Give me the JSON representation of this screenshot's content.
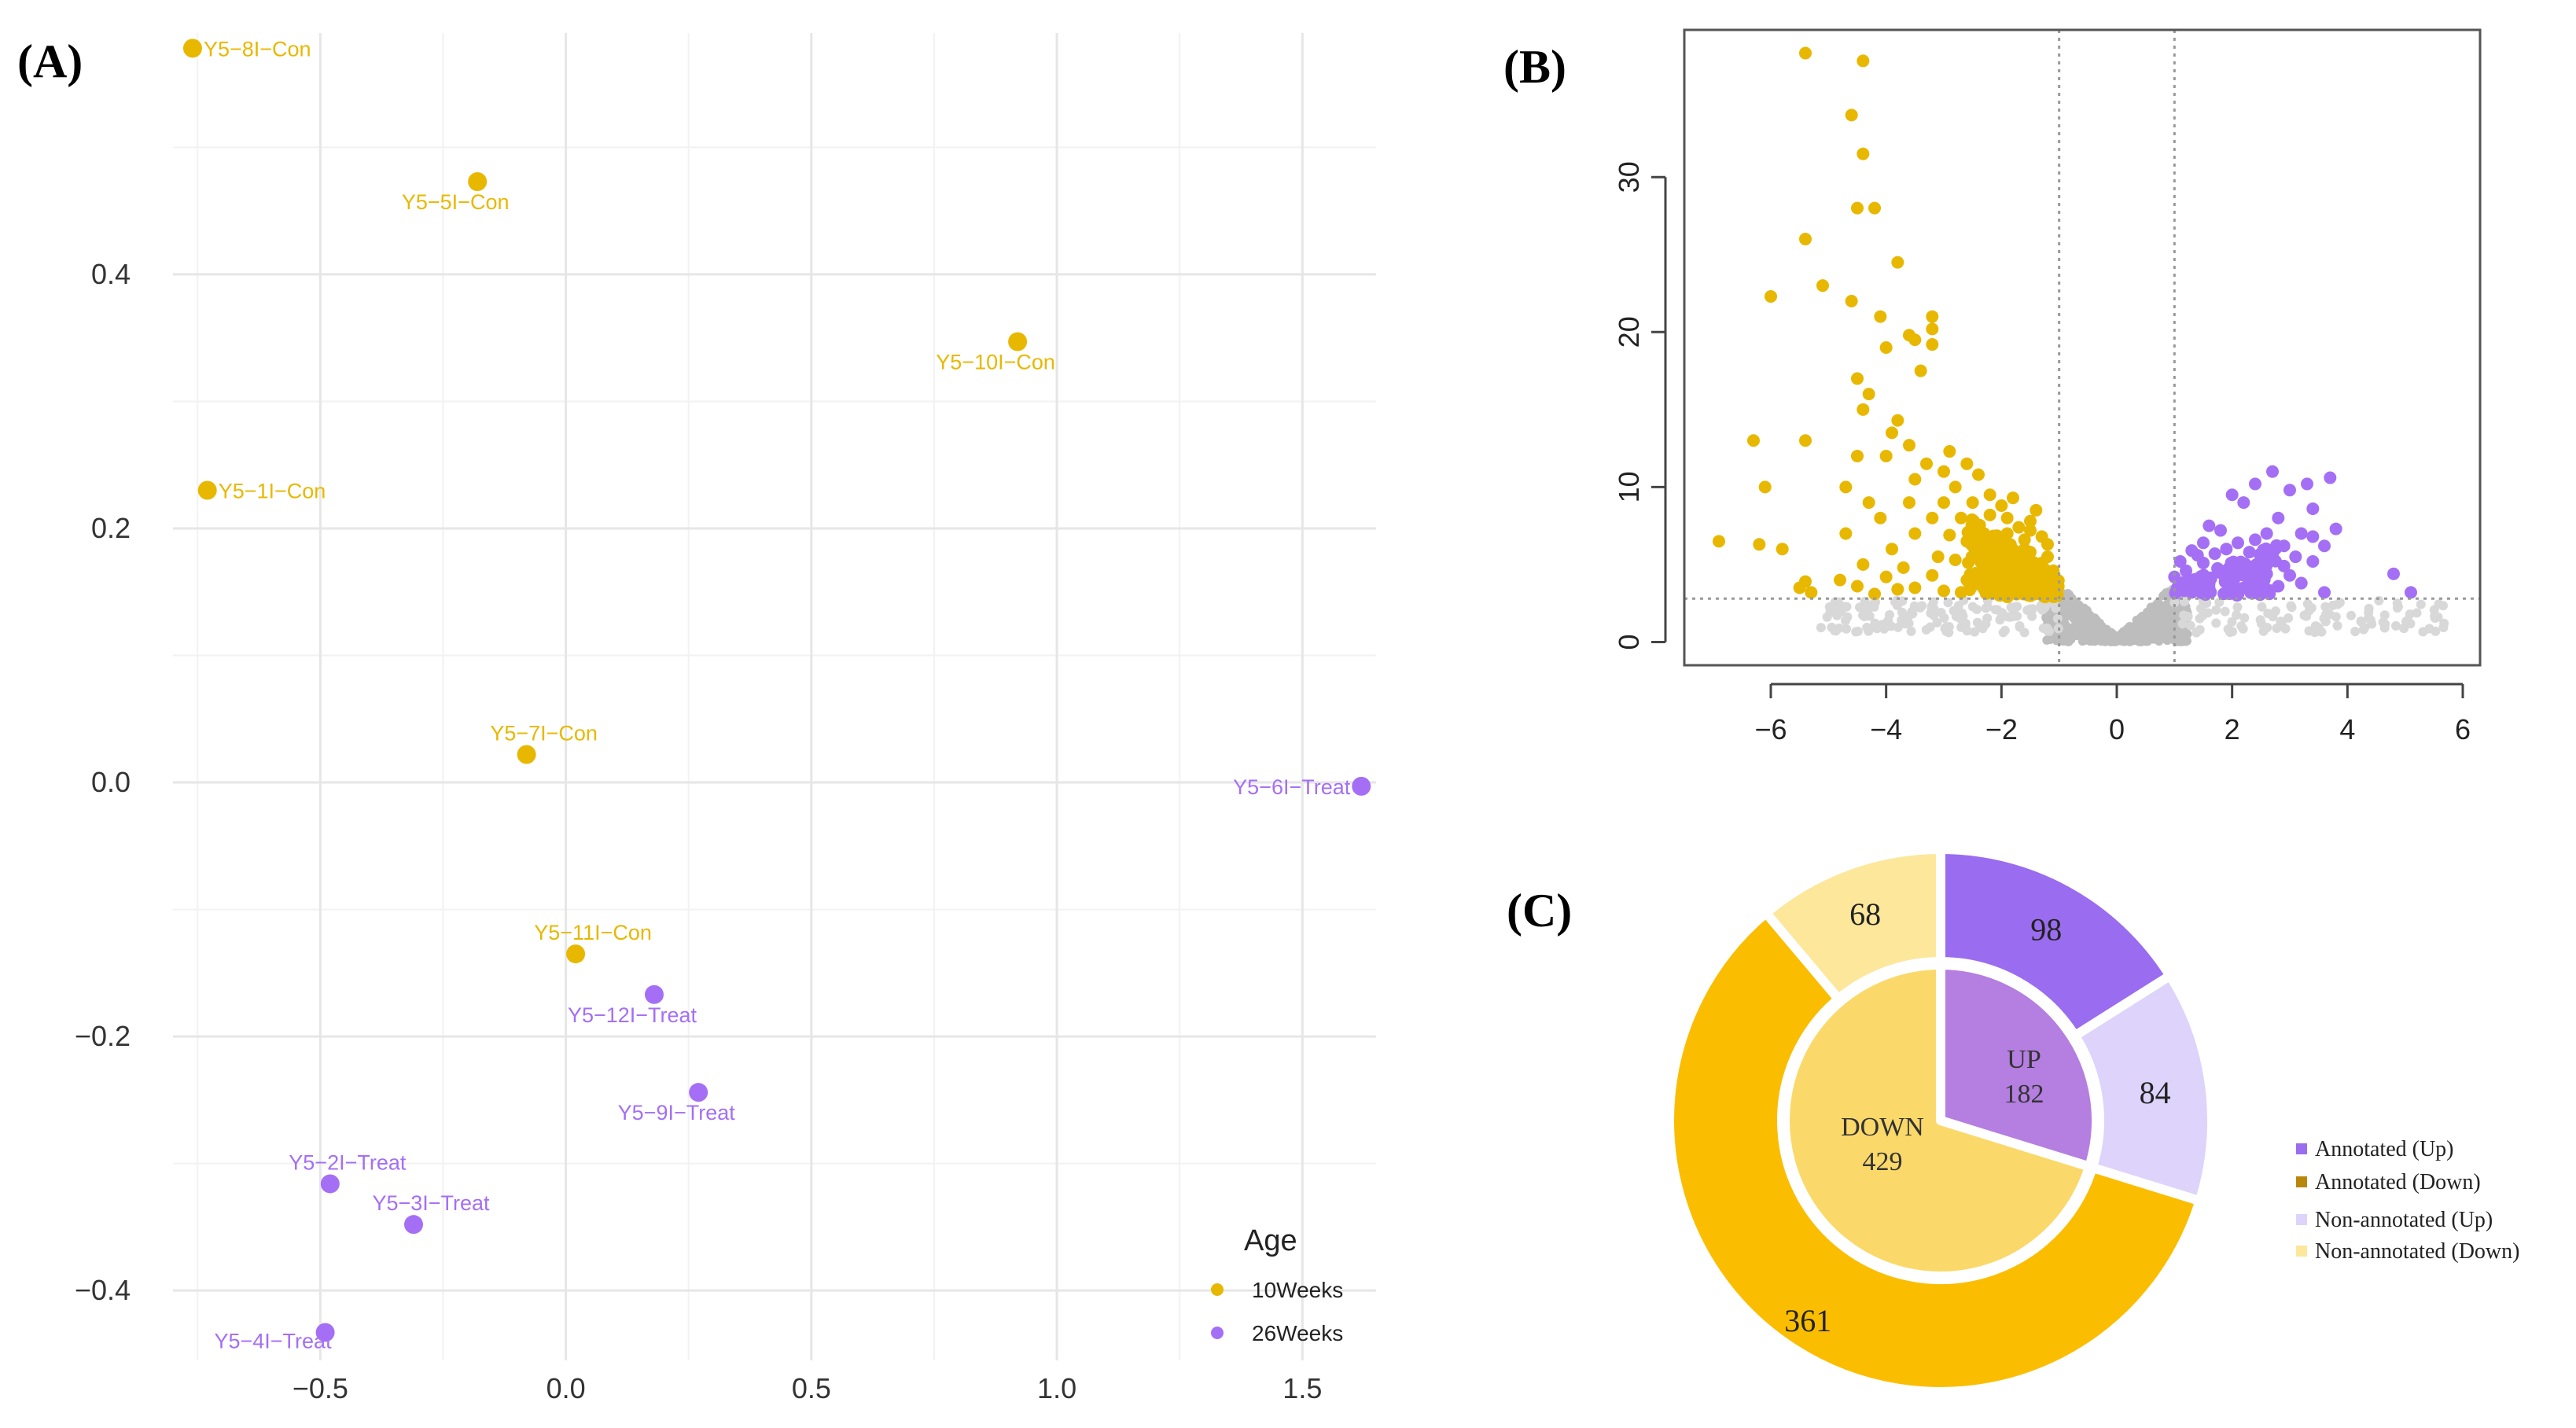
{
  "colors": {
    "gold": "#e8b800",
    "purple": "#a46ff5",
    "grey": "#bdbdbd",
    "grey_light": "#d8d8d8",
    "up_dark": "#9a6cef",
    "up_inner": "#b47fe0",
    "up_light": "#ddd3fb",
    "down_dark": "#fbbd00",
    "down_inner": "#fad96a",
    "down_light": "#fce79b"
  },
  "panels": {
    "a": "(A)",
    "b": "(B)",
    "c": "(C)"
  },
  "chart_data": [
    {
      "type": "scatter",
      "title": "",
      "xlabel": "",
      "ylabel": "",
      "xlim": [
        -0.8,
        1.65
      ],
      "ylim": [
        -0.455,
        0.59
      ],
      "xticks": [
        -0.5,
        0.0,
        0.5,
        1.0,
        1.5
      ],
      "xtick_labels": [
        "−0.5",
        "0.0",
        "0.5",
        "1.0",
        "1.5"
      ],
      "yticks": [
        -0.4,
        -0.2,
        0.0,
        0.2,
        0.4
      ],
      "ytick_labels": [
        "−0.4",
        "−0.2",
        "0.0",
        "0.2",
        "0.4"
      ],
      "legend": {
        "title": "Age",
        "position": "bottom-right",
        "entries": [
          {
            "label": "10Weeks",
            "color": "#e8b800"
          },
          {
            "label": "26Weeks",
            "color": "#a46ff5"
          }
        ]
      },
      "points": [
        {
          "label": "Y5−8I−Con",
          "x": -0.76,
          "y": 0.578,
          "group": "10Weeks",
          "anchor": "right"
        },
        {
          "label": "Y5−5I−Con",
          "x": -0.18,
          "y": 0.473,
          "group": "10Weeks",
          "anchor": "below"
        },
        {
          "label": "Y5−10I−Con",
          "x": 0.92,
          "y": 0.347,
          "group": "10Weeks",
          "anchor": "below"
        },
        {
          "label": "Y5−1I−Con",
          "x": -0.73,
          "y": 0.23,
          "group": "10Weeks",
          "anchor": "right"
        },
        {
          "label": "Y5−7I−Con",
          "x": -0.08,
          "y": 0.022,
          "group": "10Weeks",
          "anchor": "above"
        },
        {
          "label": "Y5−6I−Treat",
          "x": 1.62,
          "y": -0.003,
          "group": "26Weeks",
          "anchor": "left"
        },
        {
          "label": "Y5−11I−Con",
          "x": 0.02,
          "y": -0.135,
          "group": "10Weeks",
          "anchor": "above"
        },
        {
          "label": "Y5−12I−Treat",
          "x": 0.18,
          "y": -0.167,
          "group": "26Weeks",
          "anchor": "below"
        },
        {
          "label": "Y5−9I−Treat",
          "x": 0.27,
          "y": -0.244,
          "group": "26Weeks",
          "anchor": "below"
        },
        {
          "label": "Y5−2I−Treat",
          "x": -0.48,
          "y": -0.316,
          "group": "26Weeks",
          "anchor": "above"
        },
        {
          "label": "Y5−3I−Treat",
          "x": -0.31,
          "y": -0.348,
          "group": "26Weeks",
          "anchor": "above"
        },
        {
          "label": "Y5−4I−Treat",
          "x": -0.49,
          "y": -0.433,
          "group": "26Weeks",
          "anchor": "left-below"
        }
      ]
    },
    {
      "type": "scatter",
      "title": "",
      "xlabel": "",
      "ylabel": "",
      "xlim": [
        -7.5,
        6.3
      ],
      "ylim": [
        -1.5,
        39.5
      ],
      "xticks": [
        -6,
        -4,
        -2,
        0,
        2,
        4,
        6
      ],
      "xtick_labels": [
        "−6",
        "−4",
        "−2",
        "0",
        "2",
        "4",
        "6"
      ],
      "yticks": [
        0,
        10,
        20,
        30
      ],
      "ytick_labels": [
        "0",
        "10",
        "20",
        "30"
      ],
      "vlines": [
        -1,
        1
      ],
      "hline": 2.8,
      "series": [
        {
          "name": "down",
          "color": "#e8b800",
          "points": [
            [
              -5.4,
              38.0
            ],
            [
              -4.4,
              37.5
            ],
            [
              -4.6,
              34.0
            ],
            [
              -4.4,
              31.5
            ],
            [
              -4.5,
              28.0
            ],
            [
              -4.2,
              28.0
            ],
            [
              -5.4,
              26.0
            ],
            [
              -3.8,
              24.5
            ],
            [
              -5.1,
              23.0
            ],
            [
              -4.6,
              22.0
            ],
            [
              -6.0,
              22.3
            ],
            [
              -4.1,
              21.0
            ],
            [
              -3.2,
              21.0
            ],
            [
              -3.2,
              20.2
            ],
            [
              -3.6,
              19.8
            ],
            [
              -3.5,
              19.5
            ],
            [
              -3.2,
              19.2
            ],
            [
              -4.0,
              19.0
            ],
            [
              -3.4,
              17.5
            ],
            [
              -4.5,
              17.0
            ],
            [
              -4.3,
              16.0
            ],
            [
              -4.4,
              15.0
            ],
            [
              -3.8,
              14.3
            ],
            [
              -3.9,
              13.5
            ],
            [
              -6.3,
              13.0
            ],
            [
              -5.4,
              13.0
            ],
            [
              -3.6,
              12.7
            ],
            [
              -2.9,
              12.3
            ],
            [
              -4.0,
              12.0
            ],
            [
              -4.5,
              12.0
            ],
            [
              -2.6,
              11.5
            ],
            [
              -3.3,
              11.5
            ],
            [
              -3.0,
              11.0
            ],
            [
              -2.4,
              10.8
            ],
            [
              -6.1,
              10.0
            ],
            [
              -4.7,
              10.0
            ],
            [
              -3.5,
              10.5
            ],
            [
              -2.8,
              10.0
            ],
            [
              -2.2,
              9.5
            ],
            [
              -3.6,
              9.0
            ],
            [
              -4.3,
              9.0
            ],
            [
              -3.0,
              9.0
            ],
            [
              -2.5,
              9.0
            ],
            [
              -1.8,
              9.3
            ],
            [
              -2.0,
              8.8
            ],
            [
              -1.4,
              8.5
            ],
            [
              -4.1,
              8.0
            ],
            [
              -3.2,
              8.0
            ],
            [
              -2.7,
              8.0
            ],
            [
              -1.9,
              8.0
            ],
            [
              -1.5,
              7.8
            ],
            [
              -1.7,
              7.4
            ],
            [
              -4.7,
              7.0
            ],
            [
              -3.5,
              7.0
            ],
            [
              -2.3,
              7.0
            ],
            [
              -2.9,
              6.9
            ],
            [
              -1.6,
              6.6
            ],
            [
              -1.3,
              6.8
            ],
            [
              -1.2,
              6.3
            ],
            [
              -6.9,
              6.5
            ],
            [
              -6.2,
              6.3
            ],
            [
              -5.8,
              6.0
            ],
            [
              -3.9,
              6.0
            ],
            [
              -2.5,
              6.2
            ],
            [
              -2.1,
              6.1
            ],
            [
              -1.5,
              5.8
            ],
            [
              -3.1,
              5.5
            ],
            [
              -4.4,
              5.0
            ],
            [
              -2.8,
              5.3
            ],
            [
              -1.9,
              5.2
            ],
            [
              -1.3,
              5.1
            ],
            [
              -3.7,
              4.8
            ],
            [
              -1.6,
              4.5
            ],
            [
              -1.1,
              4.6
            ],
            [
              -4.8,
              4.0
            ],
            [
              -4.0,
              4.2
            ],
            [
              -3.2,
              4.3
            ],
            [
              -2.6,
              4.0
            ],
            [
              -2.2,
              4.1
            ],
            [
              -1.8,
              4.0
            ],
            [
              -1.4,
              3.9
            ],
            [
              -5.5,
              3.5
            ],
            [
              -5.3,
              3.2
            ],
            [
              -4.5,
              3.6
            ],
            [
              -3.8,
              3.4
            ],
            [
              -3.5,
              3.5
            ],
            [
              -3.0,
              3.3
            ],
            [
              -2.7,
              3.2
            ],
            [
              -2.3,
              3.4
            ],
            [
              -1.9,
              3.3
            ],
            [
              -1.5,
              3.3
            ],
            [
              -1.2,
              3.2
            ],
            [
              -5.4,
              3.9
            ],
            [
              -4.2,
              3.1
            ],
            [
              -1.7,
              3.6
            ],
            [
              -2.0,
              4.6
            ],
            [
              -2.4,
              5.6
            ],
            [
              -1.2,
              5.5
            ],
            [
              -1.6,
              6.0
            ],
            [
              -1.4,
              4.3
            ],
            [
              -2.1,
              3.7
            ],
            [
              -1.3,
              3.6
            ],
            [
              -1.8,
              5.6
            ],
            [
              -2.6,
              6.5
            ],
            [
              -2.2,
              8.2
            ],
            [
              -1.9,
              7.0
            ],
            [
              -1.5,
              7.2
            ]
          ]
        },
        {
          "name": "up",
          "color": "#a46ff5",
          "points": [
            [
              2.7,
              11.0
            ],
            [
              3.7,
              10.6
            ],
            [
              2.4,
              10.2
            ],
            [
              3.3,
              10.2
            ],
            [
              3.0,
              9.8
            ],
            [
              2.0,
              9.5
            ],
            [
              2.2,
              9.0
            ],
            [
              3.4,
              8.6
            ],
            [
              1.8,
              7.2
            ],
            [
              2.6,
              7.0
            ],
            [
              3.2,
              7.0
            ],
            [
              3.4,
              6.8
            ],
            [
              3.8,
              7.3
            ],
            [
              1.5,
              6.4
            ],
            [
              2.1,
              6.4
            ],
            [
              2.9,
              6.2
            ],
            [
              3.6,
              6.2
            ],
            [
              1.3,
              5.9
            ],
            [
              1.7,
              5.7
            ],
            [
              2.3,
              5.8
            ],
            [
              2.7,
              5.6
            ],
            [
              3.1,
              5.5
            ],
            [
              1.1,
              5.2
            ],
            [
              1.5,
              5.1
            ],
            [
              2.0,
              5.0
            ],
            [
              2.5,
              5.0
            ],
            [
              2.9,
              4.9
            ],
            [
              3.4,
              5.2
            ],
            [
              1.2,
              4.6
            ],
            [
              1.8,
              4.5
            ],
            [
              2.2,
              4.4
            ],
            [
              2.6,
              4.4
            ],
            [
              3.0,
              4.3
            ],
            [
              1.4,
              4.0
            ],
            [
              2.0,
              3.9
            ],
            [
              2.4,
              3.8
            ],
            [
              3.2,
              3.8
            ],
            [
              1.1,
              3.6
            ],
            [
              1.6,
              3.5
            ],
            [
              2.8,
              3.6
            ],
            [
              4.8,
              4.4
            ],
            [
              1.3,
              3.2
            ],
            [
              2.1,
              3.2
            ],
            [
              3.6,
              3.2
            ],
            [
              5.1,
              3.2
            ],
            [
              1.9,
              6.0
            ],
            [
              2.4,
              6.6
            ],
            [
              1.6,
              7.5
            ],
            [
              2.8,
              8.0
            ],
            [
              1.0,
              4.2
            ],
            [
              1.4,
              5.6
            ],
            [
              2.2,
              3.5
            ]
          ]
        }
      ]
    },
    {
      "type": "pie",
      "title": "",
      "inner_ring": [
        {
          "label": "UP",
          "value": 182
        },
        {
          "label": "DOWN",
          "value": 429
        }
      ],
      "outer_ring": [
        {
          "label": "Annotated (Up)",
          "value": 98
        },
        {
          "label": "Non-annotated (Up)",
          "value": 84
        },
        {
          "label": "Annotated (Down)",
          "value": 361
        },
        {
          "label": "Non-annotated (Down)",
          "value": 68
        }
      ],
      "legend": {
        "position": "right",
        "entries": [
          {
            "label": "Annotated (Up)",
            "color": "#9a6cef"
          },
          {
            "label": "Annotated (Down)",
            "color": "#b8860b"
          },
          {
            "label": "Non-annotated (Up)",
            "color": "#ddd3fb"
          },
          {
            "label": "Non-annotated (Down)",
            "color": "#fce79b"
          }
        ]
      }
    }
  ]
}
